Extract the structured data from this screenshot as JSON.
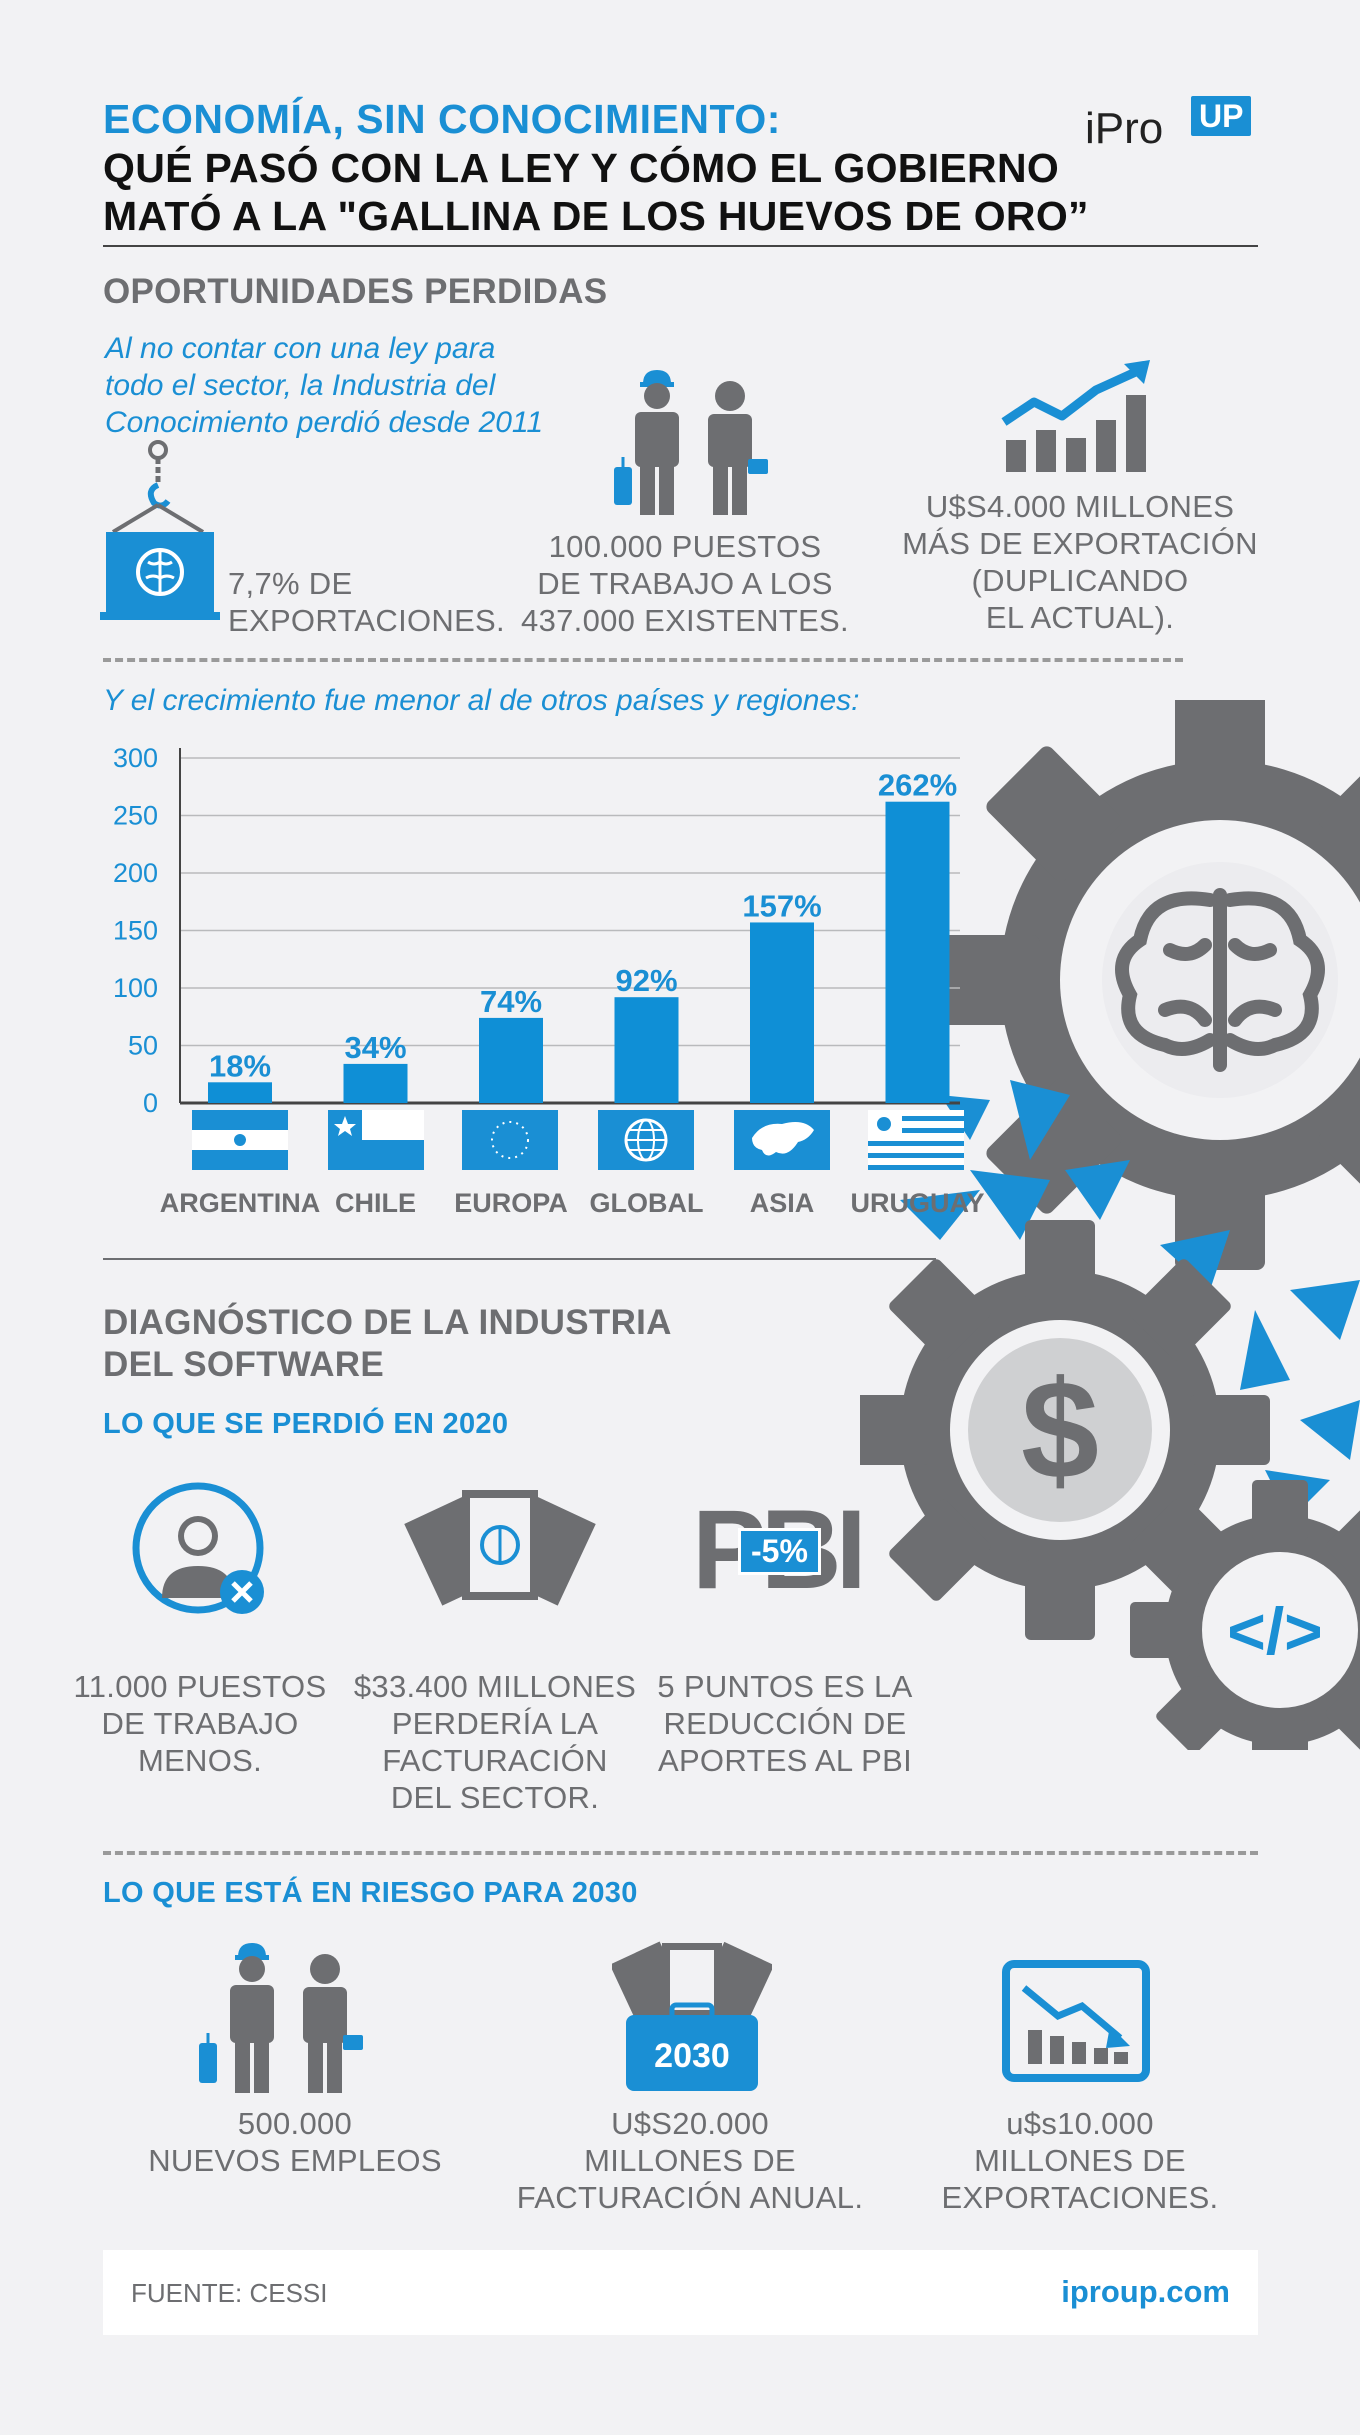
{
  "header": {
    "title_line1": "ECONOMÍA, SIN CONOCIMIENTO:",
    "title_line2": "QUÉ PASÓ CON LA LEY Y CÓMO EL GOBIERNO",
    "title_line3": "MATÓ A LA \"GALLINA DE LOS HUEVOS DE ORO”",
    "logo_text": "iPro",
    "logo_badge": "UP"
  },
  "section1": {
    "heading": "OPORTUNIDADES PERDIDAS",
    "intro_line1": "Al no contar con una ley para",
    "intro_line2": "todo el sector, la Industria del",
    "intro_line3": "Conocimiento perdió desde 2011",
    "stat1_line1": "7,7% DE",
    "stat1_line2": "EXPORTACIONES.",
    "stat2_line1": "100.000 PUESTOS",
    "stat2_line2": "DE TRABAJO A LOS",
    "stat2_line3": "437.000 EXISTENTES.",
    "stat3_line1": "U$S4.000 MILLONES",
    "stat3_line2": "MÁS DE EXPORTACIÓN",
    "stat3_line3": "(DUPLICANDO",
    "stat3_line4": "EL ACTUAL).",
    "chart_intro": "Y el crecimiento fue menor al de otros países y regiones:"
  },
  "chart_data": {
    "type": "bar",
    "categories": [
      "ARGENTINA",
      "CHILE",
      "EUROPA",
      "GLOBAL",
      "ASIA",
      "URUGUAY"
    ],
    "values": [
      18,
      34,
      74,
      92,
      157,
      262
    ],
    "data_labels": [
      "18%",
      "34%",
      "74%",
      "92%",
      "157%",
      "262%"
    ],
    "yticks": [
      "0",
      "50",
      "100",
      "150",
      "200",
      "250",
      "300"
    ],
    "ylim": [
      0,
      300
    ],
    "grid": true,
    "bar_color": "#0f8fd6"
  },
  "section2": {
    "heading_line1": "DIAGNÓSTICO DE LA INDUSTRIA",
    "heading_line2": "DEL SOFTWARE",
    "lost_heading": "LO QUE SE PERDIÓ EN 2020",
    "lost1_line1": "11.000 PUESTOS",
    "lost1_line2": "DE TRABAJO",
    "lost1_line3": "MENOS.",
    "lost2_line1": "$33.400 MILLONES",
    "lost2_line2": "PERDERÍA LA",
    "lost2_line3": "FACTURACIÓN",
    "lost2_line4": "DEL SECTOR.",
    "lost3_line1": "5 PUNTOS ES LA",
    "lost3_line2": "REDUCCIÓN DE",
    "lost3_line3": "APORTES AL PBI",
    "pbi_text": "PBI",
    "pbi_badge": "-5%",
    "risk_heading": "LO QUE ESTÁ EN RIESGO PARA 2030",
    "risk1_line1": "500.000",
    "risk1_line2": "NUEVOS EMPLEOS",
    "risk2_line1": "U$S20.000",
    "risk2_line2": "MILLONES DE",
    "risk2_line3": "FACTURACIÓN ANUAL.",
    "risk3_line1": "u$s10.000",
    "risk3_line2": "MILLONES DE",
    "risk3_line3": "EXPORTACIONES.",
    "briefcase_year": "2030",
    "dollar_sign": "$",
    "code_sign": "</>"
  },
  "footer": {
    "source": "FUENTE: CESSI",
    "site": "iproup.com"
  },
  "colors": {
    "accent": "#0f8fd6",
    "gray": "#6d6e71",
    "background": "#f2f2f4"
  }
}
